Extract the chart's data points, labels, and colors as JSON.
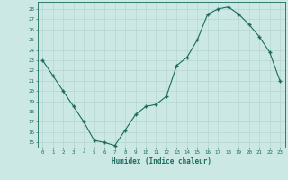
{
  "x": [
    0,
    1,
    2,
    3,
    4,
    5,
    6,
    7,
    8,
    9,
    10,
    11,
    12,
    13,
    14,
    15,
    16,
    17,
    18,
    19,
    20,
    21,
    22,
    23
  ],
  "y": [
    23.0,
    21.5,
    20.0,
    18.5,
    17.0,
    15.2,
    15.0,
    14.7,
    16.2,
    17.7,
    18.5,
    18.7,
    19.5,
    22.5,
    23.3,
    25.0,
    27.5,
    28.0,
    28.2,
    27.5,
    26.5,
    25.3,
    23.8,
    21.0
  ],
  "title": "",
  "xlabel": "Humidex (Indice chaleur)",
  "ylabel": "",
  "ylim": [
    14.5,
    28.7
  ],
  "xlim": [
    -0.5,
    23.5
  ],
  "yticks": [
    15,
    16,
    17,
    18,
    19,
    20,
    21,
    22,
    23,
    24,
    25,
    26,
    27,
    28
  ],
  "xticks": [
    0,
    1,
    2,
    3,
    4,
    5,
    6,
    7,
    8,
    9,
    10,
    11,
    12,
    13,
    14,
    15,
    16,
    17,
    18,
    19,
    20,
    21,
    22,
    23
  ],
  "line_color": "#1a6b5e",
  "marker_color": "#1a6b5e",
  "bg_color": "#cce8e4",
  "grid_color": "#b0d0cc",
  "axes_bg": "#cce8e4",
  "label_color": "#1a6b5e",
  "tick_color": "#1a6b5e",
  "border_color": "#1a6b5e"
}
